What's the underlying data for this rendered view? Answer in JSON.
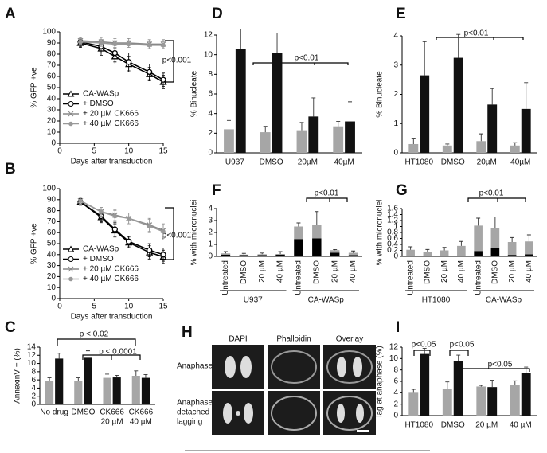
{
  "chart_data": [
    {
      "panel": "A",
      "type": "line",
      "ylabel": "% GFP +ve",
      "xlabel": "Days after transduction",
      "x": [
        3,
        6,
        8,
        10,
        13,
        15
      ],
      "xlim": [
        0,
        15
      ],
      "xticks": [
        0,
        5,
        10,
        15
      ],
      "ylim": [
        0,
        100
      ],
      "yticks": [
        0,
        10,
        20,
        30,
        40,
        50,
        60,
        70,
        80,
        90,
        100
      ],
      "legend": "lower left",
      "annotations": [
        "p<0.001"
      ],
      "series": [
        {
          "name": "CA-WASp",
          "color": "#000000",
          "marker": "triangle",
          "values": [
            90,
            85,
            78,
            71,
            62,
            55
          ],
          "errors": [
            4,
            6,
            7,
            7,
            6,
            6
          ]
        },
        {
          "name": "+ DMSO",
          "color": "#000000",
          "marker": "circle",
          "values": [
            91,
            87,
            81,
            73,
            64,
            57
          ],
          "errors": [
            4,
            6,
            8,
            8,
            7,
            6
          ]
        },
        {
          "name": "+ 20 µM CK666",
          "color": "#888888",
          "marker": "cross",
          "values": [
            92,
            91,
            90,
            90,
            89,
            89
          ],
          "errors": [
            3,
            4,
            4,
            4,
            4,
            4
          ]
        },
        {
          "name": "+ 40 µM CK666",
          "color": "#999999",
          "marker": "dot",
          "values": [
            91,
            90,
            89,
            89,
            88,
            88
          ],
          "errors": [
            3,
            3,
            3,
            3,
            3,
            3
          ]
        }
      ]
    },
    {
      "panel": "B",
      "type": "line",
      "ylabel": "% GFP +ve",
      "xlabel": "Days after transduction",
      "x": [
        3,
        6,
        8,
        10,
        13,
        15
      ],
      "xlim": [
        0,
        15
      ],
      "xticks": [
        0,
        5,
        10,
        15
      ],
      "ylim": [
        0,
        100
      ],
      "yticks": [
        0,
        10,
        20,
        30,
        40,
        50,
        60,
        70,
        80,
        90,
        100
      ],
      "legend": "lower left",
      "annotations": [
        "p<0.001"
      ],
      "series": [
        {
          "name": "CA-WASp",
          "color": "#000000",
          "marker": "triangle",
          "values": [
            88,
            74,
            62,
            51,
            42,
            38
          ],
          "errors": [
            3,
            5,
            6,
            5,
            6,
            6
          ]
        },
        {
          "name": "+ DMSO",
          "color": "#000000",
          "marker": "circle",
          "values": [
            88,
            75,
            63,
            52,
            44,
            40
          ],
          "errors": [
            3,
            5,
            6,
            5,
            6,
            6
          ]
        },
        {
          "name": "+ 20 µM CK666",
          "color": "#888888",
          "marker": "cross",
          "values": [
            89,
            79,
            76,
            73,
            67,
            62
          ],
          "errors": [
            3,
            4,
            5,
            5,
            6,
            6
          ]
        },
        {
          "name": "+ 40 µM CK666",
          "color": "#999999",
          "marker": "dot",
          "values": [
            89,
            79,
            75,
            73,
            66,
            61
          ],
          "errors": [
            3,
            4,
            5,
            5,
            6,
            6
          ]
        }
      ]
    },
    {
      "panel": "C",
      "type": "bar",
      "ylabel": "AnnexinV + (%)",
      "ylim": [
        0,
        14
      ],
      "yticks": [
        0,
        2,
        4,
        6,
        8,
        10,
        12,
        14
      ],
      "categories": [
        [
          "No drug"
        ],
        [
          "DMSO"
        ],
        [
          "CK666",
          "20 µM"
        ],
        [
          "CK666",
          "40 µM"
        ]
      ],
      "annotations": [
        "p < 0.02",
        "p < 0.0001"
      ],
      "series": [
        {
          "color": "#a6a6a6",
          "values": [
            5.8,
            5.8,
            6.5,
            7.0
          ],
          "errors": [
            0.7,
            0.7,
            0.9,
            1.2
          ]
        },
        {
          "color": "#111111",
          "values": [
            11.2,
            11.4,
            6.6,
            6.5
          ],
          "errors": [
            1.3,
            1.7,
            0.5,
            0.8
          ]
        }
      ]
    },
    {
      "panel": "D",
      "type": "bar",
      "ylabel": "% Binucleate",
      "ylim": [
        0,
        12
      ],
      "yticks": [
        0,
        2,
        4,
        6,
        8,
        10,
        12
      ],
      "categories": [
        "U937",
        "DMSO",
        "20µM",
        "40µM"
      ],
      "annotations": [
        "p<0.01"
      ],
      "series": [
        {
          "color": "#a6a6a6",
          "values": [
            2.4,
            2.1,
            2.3,
            2.7
          ],
          "errors": [
            0.9,
            0.6,
            0.8,
            0.5
          ]
        },
        {
          "color": "#111111",
          "values": [
            10.6,
            10.2,
            3.7,
            3.2
          ],
          "errors": [
            2.0,
            2.0,
            1.9,
            2.0
          ]
        }
      ]
    },
    {
      "panel": "E",
      "type": "bar",
      "ylabel": "% Binucleate",
      "ylim": [
        0,
        4
      ],
      "yticks": [
        0,
        1,
        2,
        3,
        4
      ],
      "categories": [
        "HT1080",
        "DMSO",
        "20µM",
        "40µM"
      ],
      "annotations": [
        "p<0.01"
      ],
      "series": [
        {
          "color": "#a6a6a6",
          "values": [
            0.3,
            0.25,
            0.4,
            0.25
          ],
          "errors": [
            0.2,
            0.05,
            0.25,
            0.1
          ]
        },
        {
          "color": "#111111",
          "values": [
            2.65,
            3.25,
            1.65,
            1.5
          ],
          "errors": [
            1.15,
            0.8,
            0.55,
            0.9
          ]
        }
      ]
    },
    {
      "panel": "F",
      "type": "bar",
      "stacked": true,
      "label_rotation": 90,
      "ylabel": "% with micronuclei",
      "ylim": [
        0,
        4
      ],
      "yticks": [
        0,
        1,
        2,
        3,
        4
      ],
      "categories": [
        "Untreated",
        "DMSO",
        "20 µM",
        "40 µM",
        "Untreated",
        "DMSO",
        "20 µM",
        "40 µM"
      ],
      "groups": [
        "U937",
        "CA-WASp"
      ],
      "annotations": [
        "p<0.01"
      ],
      "series": [
        {
          "color": "#000000",
          "values": [
            0.15,
            0.1,
            0.1,
            0.15,
            1.45,
            1.5,
            0.3,
            0.1
          ]
        },
        {
          "color": "#a6a6a6",
          "values": [
            0.1,
            0.05,
            0.08,
            0.05,
            1.05,
            1.15,
            0.22,
            0.2
          ],
          "errors": [
            0.15,
            0.1,
            0.1,
            0.2,
            0.3,
            1.1,
            0.05,
            0.15
          ]
        }
      ]
    },
    {
      "panel": "G",
      "type": "bar",
      "stacked": true,
      "label_rotation": 90,
      "ylabel": "% with micronuclei",
      "ylim": [
        0,
        1.6
      ],
      "yticks": [
        0,
        0.2,
        0.4,
        0.6,
        0.8,
        1,
        1.2,
        1.4,
        1.6
      ],
      "categories": [
        "Untreated",
        "DMSO",
        "20 µM",
        "40 µM",
        "Untreated",
        "DMSO",
        "20 µM",
        "40 µM"
      ],
      "groups": [
        "HT1080",
        "CA-WASp"
      ],
      "annotations": [
        "p<0.01"
      ],
      "series": [
        {
          "color": "#000000",
          "values": [
            0.02,
            0,
            0,
            0.02,
            0.18,
            0.27,
            0.05,
            0.07
          ]
        },
        {
          "color": "#a6a6a6",
          "values": [
            0.2,
            0.15,
            0.2,
            0.33,
            0.85,
            0.67,
            0.43,
            0.43
          ],
          "errors": [
            0.1,
            0.08,
            0.1,
            0.15,
            0.25,
            0.38,
            0.15,
            0.22
          ]
        }
      ]
    },
    {
      "panel": "I",
      "type": "bar",
      "ylabel": "lag at anaphase (%)",
      "ylim": [
        0,
        12
      ],
      "yticks": [
        0,
        2,
        4,
        6,
        8,
        10,
        12
      ],
      "categories": [
        "HT1080",
        "DMSO",
        "20 µM",
        "40 µM"
      ],
      "annotations": [
        "p<0.05",
        "p<0.05",
        "p<0.05"
      ],
      "series": [
        {
          "color": "#a6a6a6",
          "values": [
            4.0,
            4.7,
            5.1,
            5.3
          ],
          "errors": [
            0.6,
            1.2,
            0.2,
            0.8
          ]
        },
        {
          "color": "#111111",
          "values": [
            10.8,
            9.6,
            5.0,
            7.5
          ],
          "errors": [
            1.0,
            1.0,
            1.2,
            1.0
          ]
        }
      ]
    }
  ],
  "panel_h": {
    "letter": "H",
    "columns": [
      "DAPI",
      "Phalloidin",
      "Overlay"
    ],
    "rows": [
      [
        "Anaphase"
      ],
      [
        "Anaphase",
        "detached",
        "lagging"
      ]
    ]
  }
}
